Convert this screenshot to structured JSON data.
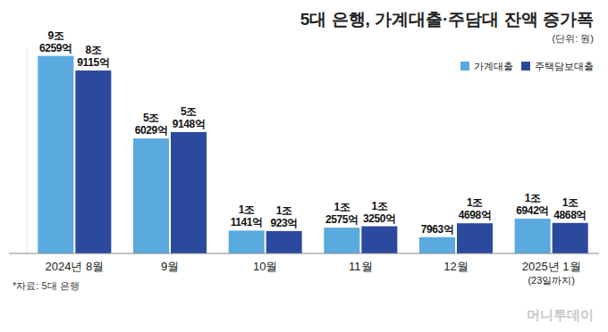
{
  "chart_data": {
    "type": "bar",
    "title": "5대 은행, 가계대출·주담대 잔액 증가폭",
    "subtitle": "(단위: 원)",
    "categories": [
      "2024년 8월",
      "9월",
      "10월",
      "11월",
      "12월",
      "2025년 1월"
    ],
    "annotations": [
      "(23일까지)"
    ],
    "source": "*자료: 5대 은행",
    "credit": "머니투데이",
    "series": [
      {
        "name": "가계대출",
        "color": "#5aa9df",
        "values": [
          96259,
          56029,
          11141,
          12575,
          7963,
          16942
        ],
        "value_labels": [
          "9조 6259억",
          "5조 6029억",
          "1조 1141억",
          "1조 2575억",
          "7963억",
          "1조 6942억"
        ]
      },
      {
        "name": "주택담보대출",
        "color": "#2b4a9e",
        "values": [
          89115,
          59148,
          10923,
          13250,
          14698,
          14868
        ],
        "value_labels": [
          "8조 9115억",
          "5조 9148억",
          "1조 923억",
          "1조 3250억",
          "1조 4698억",
          "1조 4868억"
        ]
      }
    ],
    "ylim": [
      0,
      100000
    ],
    "data_labels": true,
    "tick_labels": "x",
    "grid": false,
    "legend": "top-right"
  }
}
